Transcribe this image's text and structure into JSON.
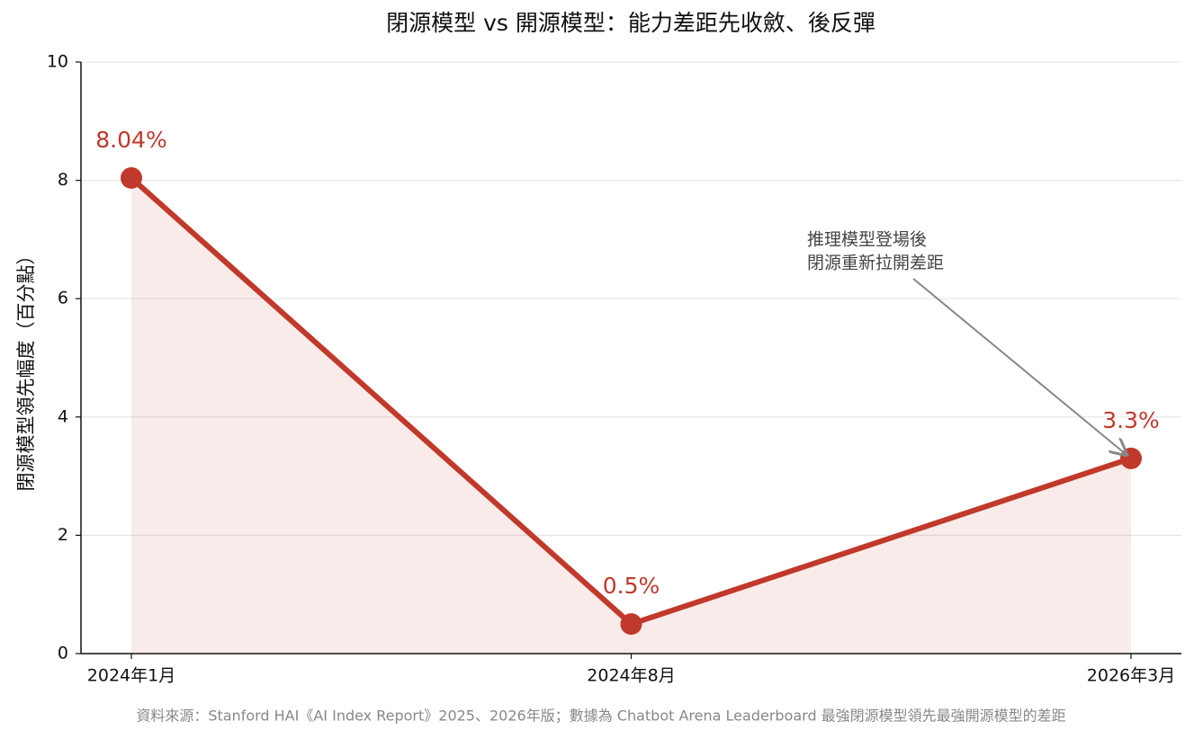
{
  "chart_data": {
    "type": "line",
    "title": "閉源模型 vs 開源模型：能力差距先收斂、後反彈",
    "y_label": "閉源模型領先幅度（百分點）",
    "categories": [
      "2024年1月",
      "2024年8月",
      "2026年3月"
    ],
    "values": [
      8.04,
      0.5,
      3.3
    ],
    "value_labels": [
      "8.04%",
      "0.5%",
      "3.3%"
    ],
    "color": "#c0392b",
    "ylim": [
      0,
      10
    ],
    "yticks": [
      0,
      2,
      4,
      6,
      8,
      10
    ],
    "grid": true,
    "annotation": {
      "lines": [
        "推理模型登場後",
        "閉源重新拉開差距"
      ]
    },
    "source": "資料來源：Stanford HAI《AI Index Report》2025、2026年版；數據為 Chatbot Arena Leaderboard 最強閉源模型領先最強開源模型的差距"
  }
}
